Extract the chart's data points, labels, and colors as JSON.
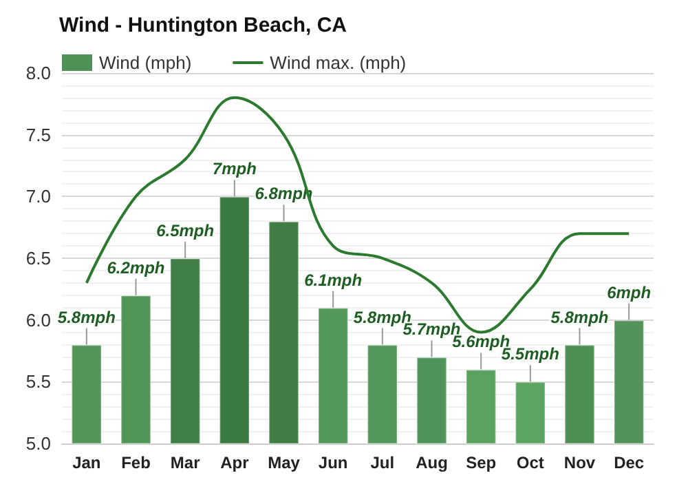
{
  "chart_data": {
    "type": "bar",
    "title": "Wind - Huntington Beach, CA",
    "categories": [
      "Jan",
      "Feb",
      "Mar",
      "Apr",
      "May",
      "Jun",
      "Jul",
      "Aug",
      "Sep",
      "Oct",
      "Nov",
      "Dec"
    ],
    "series": [
      {
        "name": "Wind (mph)",
        "color": "#4f9155",
        "colors": [
          "#54965a",
          "#529657",
          "#407f46",
          "#3b7a40",
          "#3f7d45",
          "#55995a",
          "#54975a",
          "#51945a",
          "#5ba260",
          "#5ca462",
          "#4e8f54",
          "#53935a"
        ],
        "values": [
          5.8,
          6.2,
          6.5,
          7,
          6.8,
          6.1,
          5.8,
          5.7,
          5.6,
          5.5,
          5.8,
          6
        ],
        "value_labels": [
          "5.8mph",
          "6.2mph",
          "6.5mph",
          "7mph",
          "6.8mph",
          "6.1mph",
          "5.8mph",
          "5.7mph",
          "5.6mph",
          "5.5mph",
          "5.8mph",
          "6mph"
        ]
      },
      {
        "name": "Wind max. (mph)",
        "type": "line",
        "color": "#2b7a2f",
        "values": [
          6.3,
          7.0,
          7.3,
          7.8,
          7.5,
          6.6,
          6.5,
          6.3,
          5.9,
          6.25,
          6.7,
          6.7
        ]
      }
    ],
    "ylim": [
      5,
      8
    ],
    "yticks": [
      {
        "value": 5,
        "label": "5.0"
      },
      5.5,
      {
        "value": 6,
        "label": "6.0"
      },
      6.5,
      {
        "value": 7,
        "label": "7.0"
      },
      7.5,
      {
        "value": 8,
        "label": "8.0"
      }
    ],
    "grid": "y",
    "legend": "top left",
    "marker": "none"
  }
}
